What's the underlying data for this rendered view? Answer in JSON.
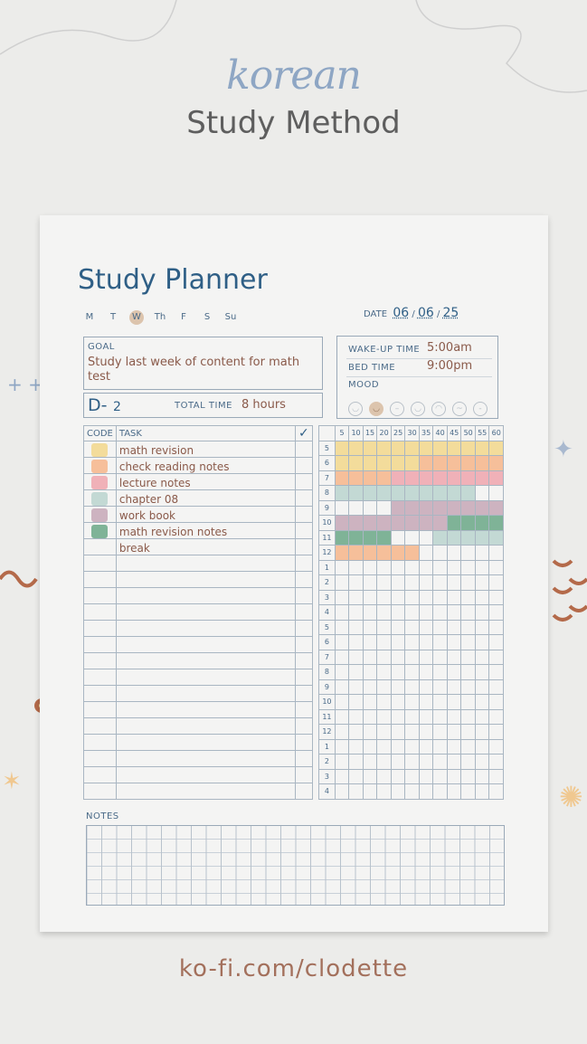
{
  "header": {
    "script_title": "korean",
    "subtitle": "Study Method",
    "footer_link": "ko-fi.com/clodette"
  },
  "planner": {
    "title": "Study Planner",
    "days": [
      "M",
      "T",
      "W",
      "Th",
      "F",
      "S",
      "Su"
    ],
    "selected_day": "W",
    "date_label": "DATE",
    "date": {
      "day": "06",
      "month": "06",
      "year": "25"
    },
    "goal_label": "GOAL",
    "goal": "Study last week of content for math test",
    "dday_label": "D-",
    "dday": "2",
    "total_time_label": "TOTAL TIME",
    "total_time": "8 hours",
    "wake_label": "WAKE-UP TIME",
    "wake": "5:00am",
    "bed_label": "BED TIME",
    "bed": "9:00pm",
    "mood_label": "MOOD",
    "mood_faces": [
      "smile",
      "grin",
      "neutral",
      "happy",
      "sad",
      "worried",
      "meh"
    ],
    "mood_selected": 1,
    "code_header": "CODE",
    "task_header": "TASK",
    "check_header": "✓",
    "colors": [
      "#f3dc9b",
      "#f6bf9a",
      "#f0b1b8",
      "#c3d9d4",
      "#cdb3c0",
      "#7fb397"
    ],
    "tasks": [
      {
        "name": "math revision",
        "color": 0
      },
      {
        "name": "check reading notes",
        "color": 1
      },
      {
        "name": "lecture notes",
        "color": 2
      },
      {
        "name": "chapter 08",
        "color": 3
      },
      {
        "name": "work book",
        "color": 4
      },
      {
        "name": "math revision notes",
        "color": 5
      },
      {
        "name": "break",
        "color": null
      }
    ],
    "task_rows_total": 22,
    "minute_headers": [
      "5",
      "10",
      "15",
      "20",
      "25",
      "30",
      "35",
      "40",
      "45",
      "50",
      "55",
      "60"
    ],
    "hours": [
      "5",
      "6",
      "7",
      "8",
      "9",
      "10",
      "11",
      "12",
      "1",
      "2",
      "3",
      "4",
      "5",
      "6",
      "7",
      "8",
      "9",
      "10",
      "11",
      "12",
      "1",
      "2",
      "3",
      "4"
    ],
    "timeline": [
      {
        "hour": "5",
        "segments": [
          [
            0,
            60,
            0
          ]
        ]
      },
      {
        "hour": "6",
        "segments": [
          [
            0,
            30,
            0
          ],
          [
            30,
            60,
            1
          ]
        ]
      },
      {
        "hour": "7",
        "segments": [
          [
            0,
            20,
            1
          ],
          [
            20,
            60,
            2
          ]
        ]
      },
      {
        "hour": "8",
        "segments": [
          [
            0,
            50,
            3
          ]
        ]
      },
      {
        "hour": "9",
        "segments": [
          [
            20,
            60,
            4
          ]
        ]
      },
      {
        "hour": "10",
        "segments": [
          [
            0,
            40,
            4
          ],
          [
            40,
            60,
            5
          ]
        ]
      },
      {
        "hour": "11",
        "segments": [
          [
            0,
            20,
            5
          ],
          [
            35,
            60,
            3
          ]
        ]
      },
      {
        "hour": "12",
        "segments": [
          [
            0,
            30,
            1
          ]
        ]
      }
    ],
    "notes_label": "NOTES"
  }
}
